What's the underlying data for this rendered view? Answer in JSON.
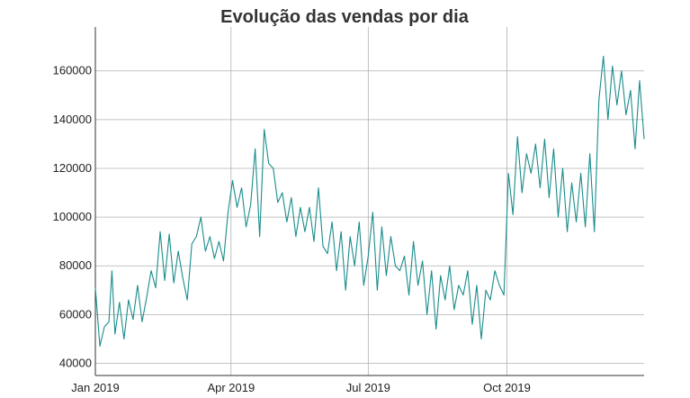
{
  "chart_data": {
    "type": "line",
    "title": "Evolução das vendas por dia",
    "xlabel": "",
    "ylabel": "",
    "grid": true,
    "xlim": [
      "2019-01-01",
      "2019-12-31"
    ],
    "ylim": [
      35000,
      178000
    ],
    "x_ticks": [
      {
        "date": "2019-01-01",
        "label": "Jan 2019"
      },
      {
        "date": "2019-04-01",
        "label": "Apr 2019"
      },
      {
        "date": "2019-07-01",
        "label": "Jul 2019"
      },
      {
        "date": "2019-10-01",
        "label": "Oct 2019"
      }
    ],
    "y_ticks": [
      {
        "value": 40000,
        "label": "40000"
      },
      {
        "value": 60000,
        "label": "60000"
      },
      {
        "value": 80000,
        "label": "80000"
      },
      {
        "value": 100000,
        "label": "100000"
      },
      {
        "value": 120000,
        "label": "120000"
      },
      {
        "value": 140000,
        "label": "140000"
      },
      {
        "value": 160000,
        "label": "160000"
      }
    ],
    "series": [
      {
        "color": "#1a8c8c",
        "points": [
          [
            "2019-01-01",
            71000
          ],
          [
            "2019-01-04",
            47000
          ],
          [
            "2019-01-07",
            55000
          ],
          [
            "2019-01-10",
            57000
          ],
          [
            "2019-01-12",
            78000
          ],
          [
            "2019-01-14",
            52000
          ],
          [
            "2019-01-17",
            65000
          ],
          [
            "2019-01-20",
            50000
          ],
          [
            "2019-01-23",
            66000
          ],
          [
            "2019-01-26",
            58000
          ],
          [
            "2019-01-29",
            72000
          ],
          [
            "2019-02-01",
            57000
          ],
          [
            "2019-02-04",
            67000
          ],
          [
            "2019-02-07",
            78000
          ],
          [
            "2019-02-10",
            71000
          ],
          [
            "2019-02-13",
            94000
          ],
          [
            "2019-02-16",
            74000
          ],
          [
            "2019-02-19",
            93000
          ],
          [
            "2019-02-22",
            73000
          ],
          [
            "2019-02-25",
            86000
          ],
          [
            "2019-02-28",
            75000
          ],
          [
            "2019-03-03",
            66000
          ],
          [
            "2019-03-06",
            89000
          ],
          [
            "2019-03-09",
            92000
          ],
          [
            "2019-03-12",
            100000
          ],
          [
            "2019-03-15",
            86000
          ],
          [
            "2019-03-18",
            92000
          ],
          [
            "2019-03-21",
            83000
          ],
          [
            "2019-03-24",
            90000
          ],
          [
            "2019-03-27",
            82000
          ],
          [
            "2019-03-30",
            102000
          ],
          [
            "2019-04-02",
            115000
          ],
          [
            "2019-04-05",
            104000
          ],
          [
            "2019-04-08",
            112000
          ],
          [
            "2019-04-11",
            96000
          ],
          [
            "2019-04-14",
            105000
          ],
          [
            "2019-04-17",
            128000
          ],
          [
            "2019-04-20",
            92000
          ],
          [
            "2019-04-23",
            136000
          ],
          [
            "2019-04-26",
            122000
          ],
          [
            "2019-04-29",
            120000
          ],
          [
            "2019-05-02",
            106000
          ],
          [
            "2019-05-05",
            110000
          ],
          [
            "2019-05-08",
            98000
          ],
          [
            "2019-05-11",
            108000
          ],
          [
            "2019-05-14",
            92000
          ],
          [
            "2019-05-17",
            104000
          ],
          [
            "2019-05-20",
            94000
          ],
          [
            "2019-05-23",
            104000
          ],
          [
            "2019-05-26",
            90000
          ],
          [
            "2019-05-29",
            112000
          ],
          [
            "2019-06-01",
            88000
          ],
          [
            "2019-06-04",
            85000
          ],
          [
            "2019-06-07",
            98000
          ],
          [
            "2019-06-10",
            78000
          ],
          [
            "2019-06-13",
            94000
          ],
          [
            "2019-06-16",
            70000
          ],
          [
            "2019-06-19",
            92000
          ],
          [
            "2019-06-22",
            80000
          ],
          [
            "2019-06-25",
            98000
          ],
          [
            "2019-06-28",
            72000
          ],
          [
            "2019-07-01",
            84000
          ],
          [
            "2019-07-04",
            102000
          ],
          [
            "2019-07-07",
            70000
          ],
          [
            "2019-07-10",
            96000
          ],
          [
            "2019-07-13",
            76000
          ],
          [
            "2019-07-16",
            92000
          ],
          [
            "2019-07-19",
            80000
          ],
          [
            "2019-07-22",
            78000
          ],
          [
            "2019-07-25",
            84000
          ],
          [
            "2019-07-28",
            68000
          ],
          [
            "2019-07-31",
            90000
          ],
          [
            "2019-08-03",
            72000
          ],
          [
            "2019-08-06",
            82000
          ],
          [
            "2019-08-09",
            60000
          ],
          [
            "2019-08-12",
            78000
          ],
          [
            "2019-08-15",
            54000
          ],
          [
            "2019-08-18",
            76000
          ],
          [
            "2019-08-21",
            66000
          ],
          [
            "2019-08-24",
            80000
          ],
          [
            "2019-08-27",
            62000
          ],
          [
            "2019-08-30",
            72000
          ],
          [
            "2019-09-02",
            68000
          ],
          [
            "2019-09-05",
            78000
          ],
          [
            "2019-09-08",
            56000
          ],
          [
            "2019-09-11",
            72000
          ],
          [
            "2019-09-14",
            50000
          ],
          [
            "2019-09-17",
            70000
          ],
          [
            "2019-09-20",
            66000
          ],
          [
            "2019-09-23",
            78000
          ],
          [
            "2019-09-26",
            72000
          ],
          [
            "2019-09-29",
            68000
          ],
          [
            "2019-10-02",
            118000
          ],
          [
            "2019-10-05",
            101000
          ],
          [
            "2019-10-08",
            133000
          ],
          [
            "2019-10-11",
            110000
          ],
          [
            "2019-10-14",
            126000
          ],
          [
            "2019-10-17",
            118000
          ],
          [
            "2019-10-20",
            130000
          ],
          [
            "2019-10-23",
            112000
          ],
          [
            "2019-10-26",
            132000
          ],
          [
            "2019-10-29",
            108000
          ],
          [
            "2019-11-01",
            128000
          ],
          [
            "2019-11-04",
            100000
          ],
          [
            "2019-11-07",
            120000
          ],
          [
            "2019-11-10",
            94000
          ],
          [
            "2019-11-13",
            114000
          ],
          [
            "2019-11-16",
            98000
          ],
          [
            "2019-11-19",
            118000
          ],
          [
            "2019-11-22",
            96000
          ],
          [
            "2019-11-25",
            126000
          ],
          [
            "2019-11-28",
            94000
          ],
          [
            "2019-12-01",
            148000
          ],
          [
            "2019-12-04",
            166000
          ],
          [
            "2019-12-07",
            140000
          ],
          [
            "2019-12-10",
            162000
          ],
          [
            "2019-12-13",
            146000
          ],
          [
            "2019-12-16",
            160000
          ],
          [
            "2019-12-19",
            142000
          ],
          [
            "2019-12-22",
            152000
          ],
          [
            "2019-12-25",
            128000
          ],
          [
            "2019-12-28",
            156000
          ],
          [
            "2019-12-31",
            132000
          ]
        ]
      }
    ]
  }
}
